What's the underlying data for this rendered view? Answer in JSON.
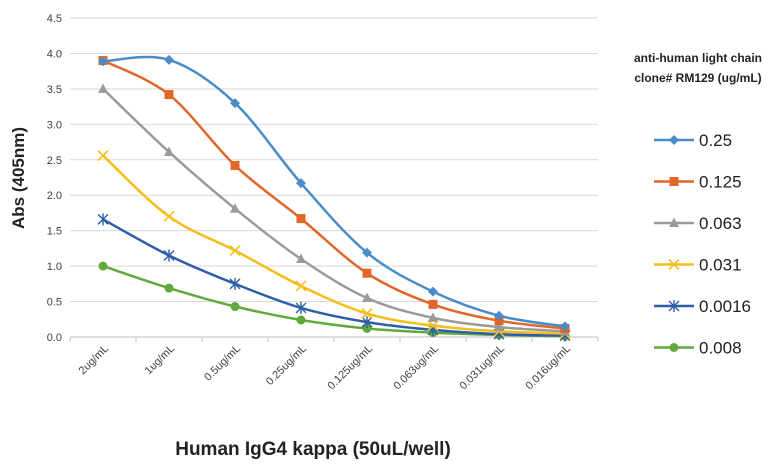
{
  "chart_data": {
    "type": "line",
    "title": "",
    "xlabel": "Human IgG4 kappa (50uL/well)",
    "ylabel": "Abs (405nm)",
    "categories": [
      "2ug/mL",
      "1ug/mL",
      "0.5ug/mL",
      "0.25ug/mL",
      "0.125ug/mL",
      "0.063ug/mL",
      "0.031ug/mL",
      "0.016ug/mL"
    ],
    "ylim": [
      0,
      4.5
    ],
    "yticks": [
      "0.0",
      "0.5",
      "1.0",
      "1.5",
      "2.0",
      "2.5",
      "3.0",
      "3.5",
      "4.0",
      "4.5"
    ],
    "grid": "horizontal",
    "legend": {
      "title_lines": [
        "anti-human light chain",
        "clone# RM129 (ug/mL)"
      ],
      "position": "right"
    },
    "series": [
      {
        "name": "0.25",
        "color": "#4a8cc9",
        "marker": "diamond",
        "values": [
          3.89,
          3.91,
          3.3,
          2.17,
          1.19,
          0.64,
          0.3,
          0.15
        ]
      },
      {
        "name": "0.125",
        "color": "#e0662a",
        "marker": "square",
        "values": [
          3.9,
          3.42,
          2.42,
          1.67,
          0.9,
          0.46,
          0.23,
          0.12
        ]
      },
      {
        "name": "0.063",
        "color": "#9a9a9a",
        "marker": "triangle",
        "values": [
          3.5,
          2.61,
          1.81,
          1.1,
          0.55,
          0.27,
          0.14,
          0.08
        ]
      },
      {
        "name": "0.031",
        "color": "#f4be1a",
        "marker": "x",
        "values": [
          2.56,
          1.7,
          1.22,
          0.72,
          0.33,
          0.16,
          0.08,
          0.05
        ]
      },
      {
        "name": "0.0016",
        "color": "#2f5ea9",
        "marker": "star",
        "values": [
          1.66,
          1.15,
          0.75,
          0.41,
          0.21,
          0.1,
          0.04,
          0.02
        ]
      },
      {
        "name": "0.008",
        "color": "#62a93d",
        "marker": "circle",
        "values": [
          1.0,
          0.69,
          0.43,
          0.24,
          0.12,
          0.06,
          0.03,
          0.01
        ]
      }
    ]
  }
}
